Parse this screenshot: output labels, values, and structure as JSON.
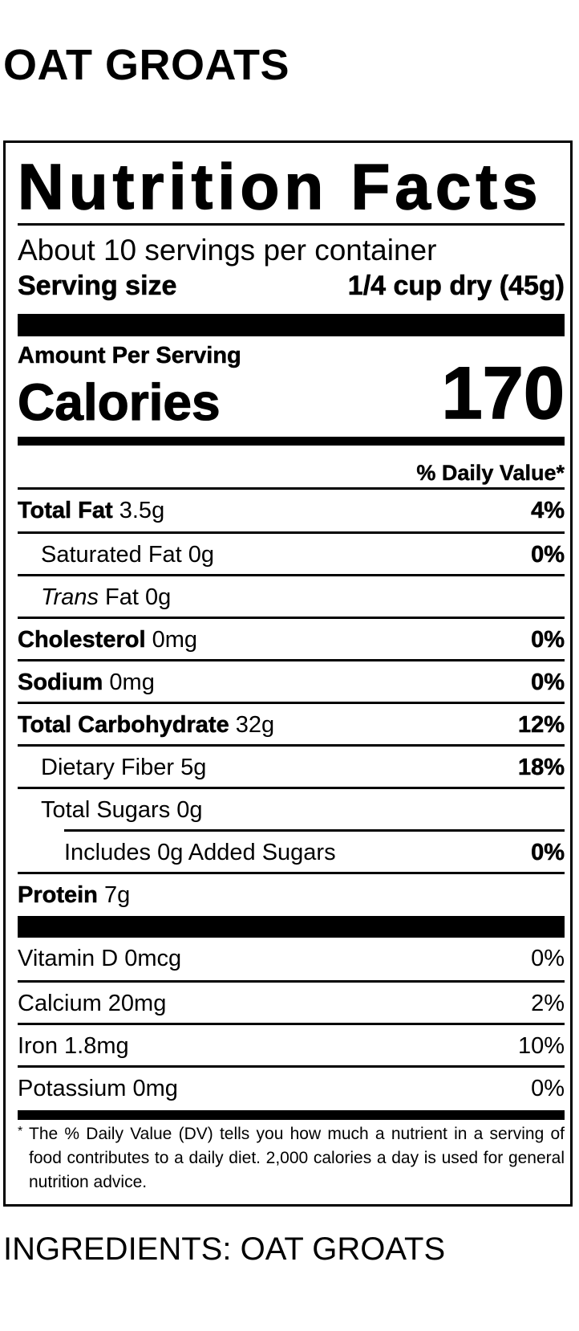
{
  "product_title": "OAT GROATS",
  "label": {
    "title": "Nutrition Facts",
    "servings_per_container": "About 10 servings per container",
    "serving_size_label": "Serving size",
    "serving_size_value": "1/4 cup dry (45g)",
    "amount_per_serving": "Amount Per Serving",
    "calories_label": "Calories",
    "calories_value": "170",
    "daily_value_header": "% Daily Value*",
    "nutrients": [
      {
        "name": "Total Fat",
        "amount": "3.5g",
        "dv": "4%"
      },
      {
        "name": "Saturated Fat",
        "amount": "0g",
        "dv": "0%"
      },
      {
        "name_italic": "Trans",
        "name": "Fat",
        "amount": "0g",
        "dv": ""
      },
      {
        "name": "Cholesterol",
        "amount": "0mg",
        "dv": "0%"
      },
      {
        "name": "Sodium",
        "amount": "0mg",
        "dv": "0%"
      },
      {
        "name": "Total Carbohydrate",
        "amount": "32g",
        "dv": "12%"
      },
      {
        "name": "Dietary Fiber",
        "amount": "5g",
        "dv": "18%"
      },
      {
        "name": "Total Sugars",
        "amount": "0g",
        "dv": ""
      },
      {
        "name": "Includes 0g Added Sugars",
        "amount": "",
        "dv": "0%"
      },
      {
        "name": "Protein",
        "amount": "7g",
        "dv": ""
      }
    ],
    "vitamins": [
      {
        "name": "Vitamin D 0mcg",
        "dv": "0%"
      },
      {
        "name": "Calcium 20mg",
        "dv": "2%"
      },
      {
        "name": "Iron 1.8mg",
        "dv": "10%"
      },
      {
        "name": "Potassium 0mg",
        "dv": "0%"
      }
    ],
    "footnote_marker": "*",
    "footnote": "The % Daily Value (DV) tells you how much a nutrient in a serving of food contributes to a daily diet. 2,000 calories a day is used for general nutrition advice."
  },
  "ingredients": "INGREDIENTS: OAT GROATS"
}
